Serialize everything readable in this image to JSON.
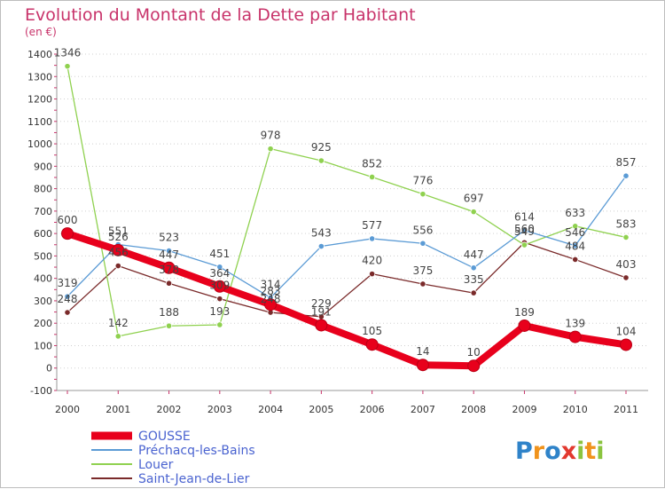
{
  "chart_data": {
    "type": "line",
    "title": "Evolution du Montant de la Dette par Habitant",
    "subtitle": "(en €)",
    "xlabel": "",
    "ylabel": "",
    "categories": [
      "2000",
      "2001",
      "2002",
      "2003",
      "2004",
      "2005",
      "2006",
      "2007",
      "2008",
      "2009",
      "2010",
      "2011"
    ],
    "ylim": [
      -100,
      1400
    ],
    "yticks": [
      "-100",
      "0",
      "100",
      "200",
      "300",
      "400",
      "500",
      "600",
      "700",
      "800",
      "900",
      "1000",
      "1100",
      "1200",
      "1300",
      "1400"
    ],
    "legend_position": "bottom-left",
    "series": [
      {
        "name": "GOUSSE",
        "color": "#e8001c",
        "values": [
          600,
          526,
          447,
          364,
          283,
          191,
          105,
          14,
          10,
          189,
          139,
          104
        ],
        "labels": [
          "600",
          "526",
          "447",
          "364",
          "283",
          "191",
          "105",
          "14",
          "10",
          "189",
          "139",
          "104"
        ]
      },
      {
        "name": "Préchacq-les-Bains",
        "color": "#5b9bd5",
        "values": [
          319,
          551,
          523,
          451,
          314,
          543,
          577,
          556,
          447,
          614,
          546,
          857
        ],
        "labels": [
          "319",
          "551",
          "523",
          "451",
          "314",
          "543",
          "577",
          "556",
          "447",
          "614",
          "546",
          "857"
        ]
      },
      {
        "name": "Louer",
        "color": "#8fd14f",
        "values": [
          1346,
          142,
          188,
          193,
          978,
          925,
          852,
          776,
          697,
          549,
          633,
          583
        ],
        "labels": [
          "1346",
          "142",
          "188",
          "193",
          "978",
          "925",
          "852",
          "776",
          "697",
          "549",
          "633",
          "583"
        ]
      },
      {
        "name": "Saint-Jean-de-Lier",
        "color": "#7a2a2a",
        "values": [
          248,
          456,
          378,
          309,
          248,
          229,
          420,
          375,
          335,
          560,
          484,
          403
        ],
        "labels": [
          "248",
          "456",
          "378",
          "309",
          "248",
          "229",
          "420",
          "375",
          "335",
          "560",
          "484",
          "403"
        ]
      }
    ]
  },
  "brand": {
    "letters": [
      "P",
      "r",
      "o",
      "x",
      "i",
      "t",
      "i"
    ],
    "colors": [
      "#2f83c9",
      "#f0931c",
      "#2f83c9",
      "#e2392f",
      "#8ac43f",
      "#f0931c",
      "#8ac43f"
    ]
  }
}
